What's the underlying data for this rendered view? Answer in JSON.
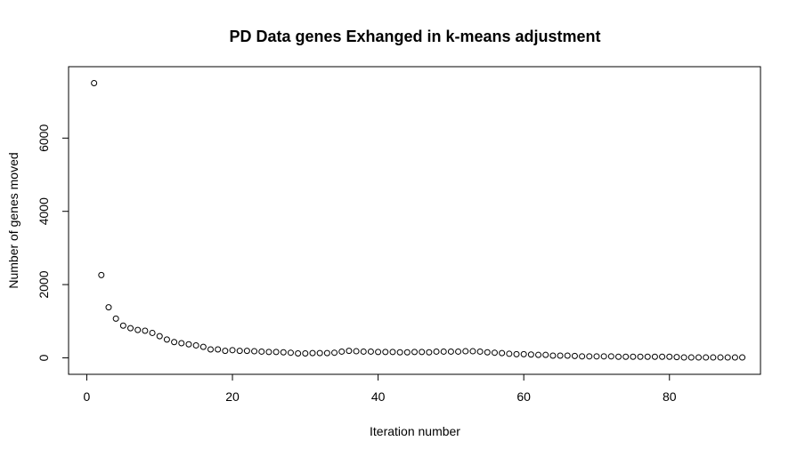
{
  "chart_data": {
    "type": "scatter",
    "title": "PD Data genes Exhanged in k-means adjustment",
    "xlabel": "Iteration number",
    "ylabel": "Number of genes moved",
    "xlim": [
      -2.5,
      92.5
    ],
    "ylim": [
      -450,
      7950
    ],
    "x_ticks": [
      0,
      20,
      40,
      60,
      80
    ],
    "y_ticks": [
      0,
      2000,
      4000,
      6000
    ],
    "grid": false,
    "legend": "none",
    "marker": "open-circle",
    "x": [
      1,
      2,
      3,
      4,
      5,
      6,
      7,
      8,
      9,
      10,
      11,
      12,
      13,
      14,
      15,
      16,
      17,
      18,
      19,
      20,
      21,
      22,
      23,
      24,
      25,
      26,
      27,
      28,
      29,
      30,
      31,
      32,
      33,
      34,
      35,
      36,
      37,
      38,
      39,
      40,
      41,
      42,
      43,
      44,
      45,
      46,
      47,
      48,
      49,
      50,
      51,
      52,
      53,
      54,
      55,
      56,
      57,
      58,
      59,
      60,
      61,
      62,
      63,
      64,
      65,
      66,
      67,
      68,
      69,
      70,
      71,
      72,
      73,
      74,
      75,
      76,
      77,
      78,
      79,
      80,
      81,
      82,
      83,
      84,
      85,
      86,
      87,
      88,
      89,
      90
    ],
    "y": [
      7500,
      2260,
      1380,
      1070,
      880,
      810,
      760,
      740,
      680,
      590,
      500,
      430,
      400,
      370,
      340,
      300,
      230,
      230,
      190,
      210,
      190,
      190,
      180,
      170,
      160,
      160,
      150,
      140,
      120,
      120,
      130,
      130,
      130,
      140,
      170,
      190,
      180,
      170,
      170,
      160,
      160,
      160,
      150,
      150,
      160,
      160,
      150,
      170,
      170,
      170,
      170,
      180,
      180,
      170,
      150,
      140,
      130,
      110,
      100,
      100,
      90,
      80,
      80,
      60,
      60,
      60,
      50,
      40,
      40,
      40,
      40,
      40,
      30,
      30,
      30,
      30,
      30,
      30,
      30,
      30,
      20,
      10,
      10,
      10,
      10,
      10,
      10,
      10,
      10,
      10
    ]
  }
}
